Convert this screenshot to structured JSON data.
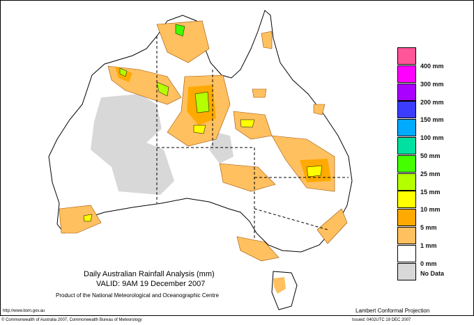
{
  "title": "Daily Australian Rainfall Analysis (mm)",
  "valid": "VALID: 9AM 19 December 2007",
  "product": "Product of the National Meteorological and Oceanographic Centre",
  "url": "http://www.bom.gov.au",
  "projection": "Lambert Conformal Projection",
  "copyright": "© Commonwealth of Australia 2007, Commonwealth Bureau of Meteorology",
  "issued": "Issued: 0402UTC 19 DEC 2007",
  "legend": [
    {
      "color": "#ff5599",
      "label": "400 mm"
    },
    {
      "color": "#ff00ff",
      "label": "300 mm"
    },
    {
      "color": "#aa00ff",
      "label": "200 mm"
    },
    {
      "color": "#3c3cff",
      "label": "150 mm"
    },
    {
      "color": "#00aaff",
      "label": "100 mm"
    },
    {
      "color": "#00e0a0",
      "label": "50 mm"
    },
    {
      "color": "#44ff00",
      "label": "25 mm"
    },
    {
      "color": "#b4ff00",
      "label": "15 mm"
    },
    {
      "color": "#ffff00",
      "label": "10 mm"
    },
    {
      "color": "#ffaa00",
      "label": "5 mm"
    },
    {
      "color": "#ffc060",
      "label": "1 mm"
    },
    {
      "color": "#ffffff",
      "label": "0 mm"
    },
    {
      "color": "#d8d8d8",
      "label": "No Data"
    }
  ]
}
